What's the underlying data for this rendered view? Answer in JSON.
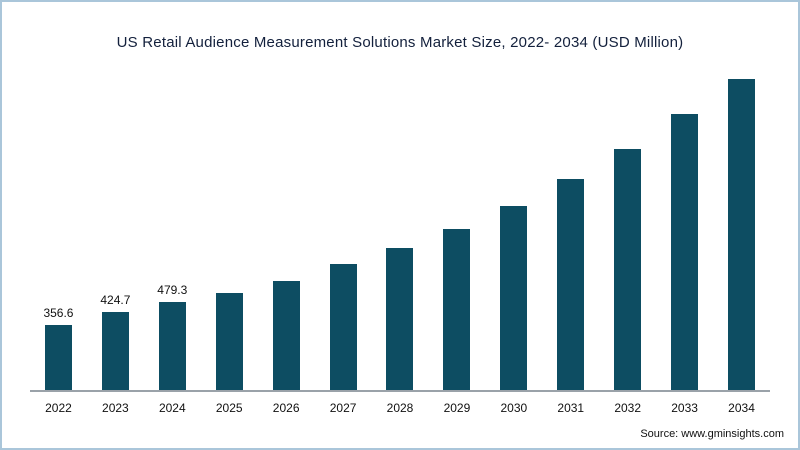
{
  "page": {
    "background": "#ffffff",
    "border_color": "#aac6da"
  },
  "title": "US Retail Audience Measurement Solutions Market Size, 2022- 2034 (USD Million)",
  "source": "Source: www.gminsights.com",
  "chart_data": {
    "type": "bar",
    "title": "US Retail Audience Measurement Solutions Market Size, 2022- 2034 (USD Million)",
    "xlabel": "",
    "ylabel": "",
    "categories": [
      "2022",
      "2023",
      "2024",
      "2025",
      "2026",
      "2027",
      "2028",
      "2029",
      "2030",
      "2031",
      "2032",
      "2033",
      "2034"
    ],
    "values": [
      356.6,
      424.7,
      479.3,
      530,
      595,
      685,
      775,
      880,
      1005,
      1150,
      1315,
      1505,
      1715
    ],
    "data_labels": [
      "356.6",
      "424.7",
      "479.3",
      "",
      "",
      "",
      "",
      "",
      "",
      "",
      "",
      "",
      ""
    ],
    "ylim": [
      0,
      1800
    ],
    "grid": false,
    "legend": "none",
    "bar_color": "#0d4d62",
    "axis_line_color": "#9aa2a9"
  }
}
